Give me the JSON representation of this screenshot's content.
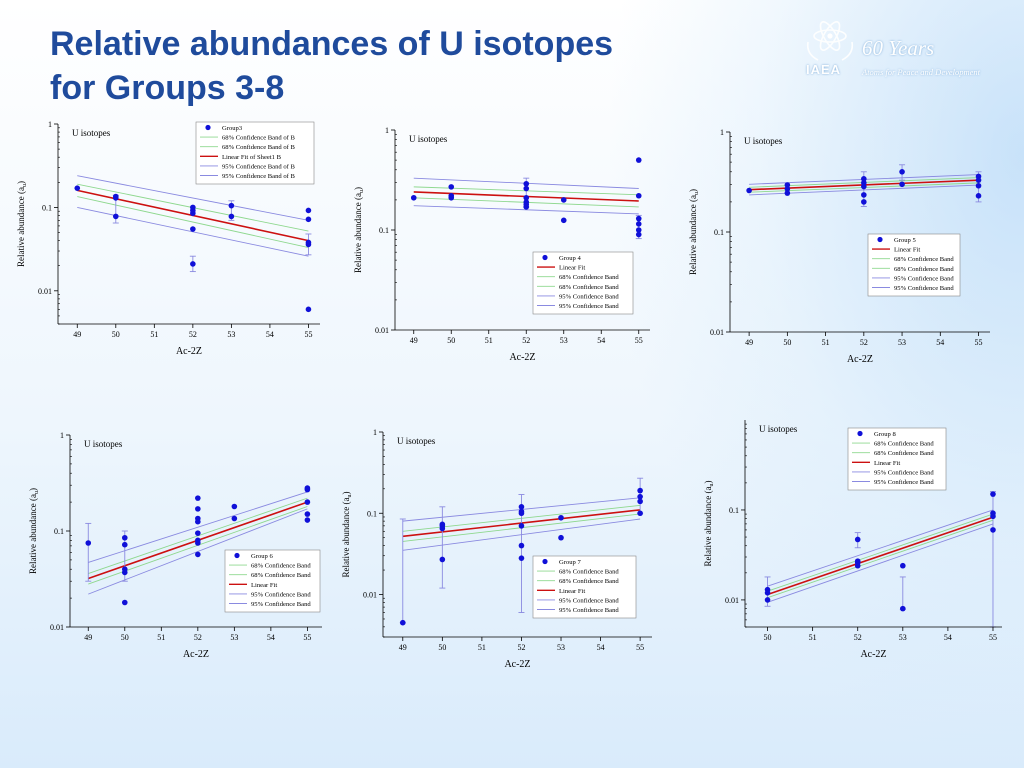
{
  "slide": {
    "title_line1": "Relative abundances of U isotopes",
    "title_line2": "for Groups 3-8",
    "logo": {
      "org": "IAEA",
      "years": "60 Years",
      "tagline": "Atoms for Peace and Development"
    }
  },
  "chart_data": [
    {
      "type": "scatter",
      "panel_title": "U isotopes",
      "xlabel": "Ac-2Z",
      "ylabel": "Relative abundance (a",
      "ylabel_sub": "u",
      "y_scale": "log",
      "xlim": [
        48.5,
        55.3
      ],
      "ylim": [
        0.004,
        1
      ],
      "xticks": [
        49,
        50,
        51,
        52,
        53,
        54,
        55
      ],
      "yticks": [
        0.01,
        0.1,
        1
      ],
      "ytick_labels": [
        "0.01",
        "0.1",
        "1"
      ],
      "legend": [
        "Group3",
        "68% Confidence Band of B",
        "68% Confidence Band of B",
        "Linear Fit of Sheet1 B",
        "95% Confidence Band of B",
        "95% Confidence Band of B"
      ],
      "points": [
        [
          49,
          0.17
        ],
        [
          50,
          0.13
        ],
        [
          50,
          0.135
        ],
        [
          50,
          0.078
        ],
        [
          52,
          0.1
        ],
        [
          52,
          0.092
        ],
        [
          52,
          0.085
        ],
        [
          52,
          0.055
        ],
        [
          52,
          0.021
        ],
        [
          53,
          0.105
        ],
        [
          53,
          0.078
        ],
        [
          55,
          0.092
        ],
        [
          55,
          0.072
        ],
        [
          55,
          0.038
        ],
        [
          55,
          0.036
        ],
        [
          55,
          0.006
        ]
      ],
      "errors": [
        [
          50,
          0.065,
          0.14
        ],
        [
          52,
          0.017,
          0.026
        ],
        [
          53,
          0.07,
          0.12
        ],
        [
          55,
          0.027,
          0.048
        ]
      ],
      "fit": [
        [
          49,
          0.16
        ],
        [
          55,
          0.04
        ]
      ],
      "band68": [
        [
          49,
          0.19,
          0.135
        ],
        [
          55,
          0.052,
          0.033
        ]
      ],
      "band95": [
        [
          49,
          0.24,
          0.1
        ],
        [
          55,
          0.07,
          0.026
        ]
      ]
    },
    {
      "type": "scatter",
      "panel_title": "U isotopes",
      "xlabel": "Ac-2Z",
      "ylabel": "Relative abundance (a",
      "ylabel_sub": "u",
      "y_scale": "log",
      "xlim": [
        48.5,
        55.3
      ],
      "ylim": [
        0.01,
        1
      ],
      "xticks": [
        49,
        50,
        51,
        52,
        53,
        54,
        55
      ],
      "yticks": [
        0.01,
        0.1,
        1
      ],
      "ytick_labels": [
        "0.01",
        "0.1",
        "1"
      ],
      "legend": [
        "Group 4",
        "Linear Fit",
        "68% Confidence Band",
        "68% Confidence Band",
        "95% Confidence Band",
        "95% Confidence Band"
      ],
      "points": [
        [
          49,
          0.21
        ],
        [
          50,
          0.27
        ],
        [
          50,
          0.22
        ],
        [
          50,
          0.21
        ],
        [
          52,
          0.29
        ],
        [
          52,
          0.26
        ],
        [
          52,
          0.21
        ],
        [
          52,
          0.19
        ],
        [
          52,
          0.18
        ],
        [
          52,
          0.17
        ],
        [
          53,
          0.2
        ],
        [
          53,
          0.125
        ],
        [
          55,
          0.5
        ],
        [
          55,
          0.22
        ],
        [
          55,
          0.13
        ],
        [
          55,
          0.115
        ],
        [
          55,
          0.1
        ],
        [
          55,
          0.09
        ]
      ],
      "errors": [
        [
          52,
          0.17,
          0.33
        ],
        [
          55,
          0.082,
          0.14
        ]
      ],
      "fit": [
        [
          49,
          0.24
        ],
        [
          55,
          0.195
        ]
      ],
      "band68": [
        [
          49,
          0.27,
          0.21
        ],
        [
          55,
          0.225,
          0.17
        ]
      ],
      "band95": [
        [
          49,
          0.33,
          0.175
        ],
        [
          55,
          0.26,
          0.145
        ]
      ]
    },
    {
      "type": "scatter",
      "panel_title": "U isotopes",
      "xlabel": "Ac-2Z",
      "ylabel": "Relative abundance (a",
      "ylabel_sub": "u",
      "y_scale": "log",
      "xlim": [
        48.5,
        55.3
      ],
      "ylim": [
        0.01,
        1
      ],
      "xticks": [
        49,
        50,
        51,
        52,
        53,
        54,
        55
      ],
      "yticks": [
        0.01,
        0.1,
        1
      ],
      "ytick_labels": [
        "0.01",
        "0.1",
        "1"
      ],
      "legend": [
        "Group 5",
        "Linear Fit",
        "68% Confidence Band",
        "68% Confidence Band",
        "95% Confidence Band",
        "95% Confidence Band"
      ],
      "points": [
        [
          49,
          0.26
        ],
        [
          50,
          0.295
        ],
        [
          50,
          0.27
        ],
        [
          50,
          0.245
        ],
        [
          52,
          0.34
        ],
        [
          52,
          0.31
        ],
        [
          52,
          0.285
        ],
        [
          52,
          0.235
        ],
        [
          52,
          0.2
        ],
        [
          53,
          0.4
        ],
        [
          53,
          0.3
        ],
        [
          55,
          0.36
        ],
        [
          55,
          0.33
        ],
        [
          55,
          0.29
        ],
        [
          55,
          0.23
        ]
      ],
      "errors": [
        [
          52,
          0.18,
          0.4
        ],
        [
          53,
          0.33,
          0.47
        ],
        [
          55,
          0.2,
          0.4
        ]
      ],
      "fit": [
        [
          49,
          0.265
        ],
        [
          55,
          0.33
        ]
      ],
      "band68": [
        [
          49,
          0.28,
          0.25
        ],
        [
          55,
          0.35,
          0.31
        ]
      ],
      "band95": [
        [
          49,
          0.3,
          0.235
        ],
        [
          55,
          0.375,
          0.295
        ]
      ]
    },
    {
      "type": "scatter",
      "panel_title": "U isotopes",
      "xlabel": "Ac-2Z",
      "ylabel": "Relative abundance (a",
      "ylabel_sub": "u",
      "y_scale": "log",
      "xlim": [
        48.5,
        55.4
      ],
      "ylim": [
        0.01,
        1
      ],
      "xticks": [
        49,
        50,
        51,
        52,
        53,
        54,
        55
      ],
      "yticks": [
        0.01,
        0.1,
        1
      ],
      "ytick_labels": [
        "0.01",
        "0.1",
        "1"
      ],
      "legend": [
        "Group 6",
        "68% Confidence Band",
        "68% Confidence Band",
        "Linear Fit",
        "95% Confidence Band",
        "95% Confidence Band"
      ],
      "points": [
        [
          49,
          0.075
        ],
        [
          50,
          0.085
        ],
        [
          50,
          0.072
        ],
        [
          50,
          0.04
        ],
        [
          50,
          0.037
        ],
        [
          50,
          0.018
        ],
        [
          52,
          0.22
        ],
        [
          52,
          0.17
        ],
        [
          52,
          0.135
        ],
        [
          52,
          0.125
        ],
        [
          52,
          0.095
        ],
        [
          52,
          0.08
        ],
        [
          52,
          0.075
        ],
        [
          52,
          0.057
        ],
        [
          53,
          0.18
        ],
        [
          53,
          0.135
        ],
        [
          55,
          0.28
        ],
        [
          55,
          0.27
        ],
        [
          55,
          0.2
        ],
        [
          55,
          0.15
        ],
        [
          55,
          0.13
        ]
      ],
      "errors": [
        [
          49,
          0.03,
          0.12
        ],
        [
          50,
          0.03,
          0.1
        ]
      ],
      "fit": [
        [
          49,
          0.032
        ],
        [
          55,
          0.2
        ]
      ],
      "band68": [
        [
          49,
          0.036,
          0.028
        ],
        [
          55,
          0.22,
          0.18
        ]
      ],
      "band95": [
        [
          49,
          0.047,
          0.022
        ],
        [
          55,
          0.255,
          0.17
        ]
      ]
    },
    {
      "type": "scatter",
      "panel_title": "U isotopes",
      "xlabel": "Ac-2Z",
      "ylabel": "Relative abundance (a",
      "ylabel_sub": "u",
      "y_scale": "log",
      "xlim": [
        48.5,
        55.3
      ],
      "ylim": [
        0.003,
        1
      ],
      "xticks": [
        49,
        50,
        51,
        52,
        53,
        54,
        55
      ],
      "yticks": [
        0.01,
        0.1,
        1
      ],
      "ytick_labels": [
        "0.01",
        "0.1",
        "1"
      ],
      "legend": [
        "Group 7",
        "68% Confidence Band",
        "68% Confidence Band",
        "Linear Fit",
        "95% Confidence Band",
        "95% Confidence Band"
      ],
      "points": [
        [
          49,
          0.0045
        ],
        [
          50,
          0.073
        ],
        [
          50,
          0.07
        ],
        [
          50,
          0.065
        ],
        [
          50,
          0.027
        ],
        [
          52,
          0.12
        ],
        [
          52,
          0.105
        ],
        [
          52,
          0.1
        ],
        [
          52,
          0.07
        ],
        [
          52,
          0.04
        ],
        [
          52,
          0.028
        ],
        [
          53,
          0.088
        ],
        [
          53,
          0.05
        ],
        [
          55,
          0.19
        ],
        [
          55,
          0.16
        ],
        [
          55,
          0.14
        ],
        [
          55,
          0.1
        ]
      ],
      "errors": [
        [
          49,
          0.0045,
          0.085
        ],
        [
          50,
          0.012,
          0.12
        ],
        [
          52,
          0.006,
          0.17
        ],
        [
          55,
          0.1,
          0.27
        ]
      ],
      "fit": [
        [
          49,
          0.052
        ],
        [
          55,
          0.11
        ]
      ],
      "band68": [
        [
          49,
          0.06,
          0.045
        ],
        [
          55,
          0.125,
          0.098
        ]
      ],
      "band95": [
        [
          49,
          0.08,
          0.035
        ],
        [
          55,
          0.155,
          0.085
        ]
      ]
    },
    {
      "type": "scatter",
      "panel_title": "U isotopes",
      "xlabel": "Ac-2Z",
      "ylabel": "Relative abundance (a",
      "ylabel_sub": "u",
      "y_scale": "log",
      "xlim": [
        49.5,
        55.2
      ],
      "ylim": [
        0.005,
        1
      ],
      "xticks": [
        50,
        51,
        52,
        53,
        54,
        55
      ],
      "yticks": [
        0.01,
        0.1
      ],
      "ytick_labels": [
        "0.01",
        "0.1"
      ],
      "legend": [
        "Group 8",
        "68% Confidence Band",
        "68% Confidence Band",
        "Linear Fit",
        "95% Confidence Band",
        "95% Confidence Band"
      ],
      "points": [
        [
          50,
          0.013
        ],
        [
          50,
          0.012
        ],
        [
          50,
          0.01
        ],
        [
          52,
          0.047
        ],
        [
          52,
          0.027
        ],
        [
          52,
          0.026
        ],
        [
          52,
          0.024
        ],
        [
          53,
          0.024
        ],
        [
          53,
          0.008
        ],
        [
          55,
          0.15
        ],
        [
          55,
          0.092
        ],
        [
          55,
          0.085
        ],
        [
          55,
          0.06
        ]
      ],
      "errors": [
        [
          50,
          0.0085,
          0.018
        ],
        [
          52,
          0.038,
          0.056
        ],
        [
          53,
          0.0078,
          0.018
        ],
        [
          55,
          0.005,
          0.16
        ]
      ],
      "fit": [
        [
          50,
          0.0115
        ],
        [
          55,
          0.083
        ]
      ],
      "band68": [
        [
          50,
          0.0125,
          0.0106
        ],
        [
          55,
          0.09,
          0.077
        ]
      ],
      "band95": [
        [
          50,
          0.0142,
          0.0094
        ],
        [
          55,
          0.1,
          0.07
        ]
      ]
    }
  ]
}
